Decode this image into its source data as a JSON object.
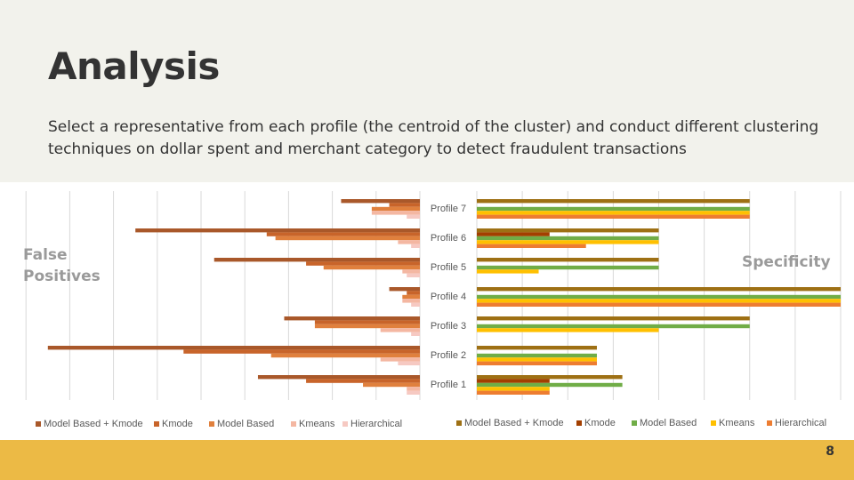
{
  "slide": {
    "title": "Analysis",
    "subtitle": "Select a representative from each profile (the centroid of the cluster) and conduct different clustering techniques on dollar spent and merchant category to detect fraudulent transactions",
    "page_number": "8"
  },
  "colors": {
    "header_bg": "#f2f2ec",
    "footer_bg": "#ecba45",
    "grid": "#d9d9d9",
    "fp_series": [
      "#a9582a",
      "#c8642a",
      "#e0803d",
      "#f4b7a2",
      "#f6c9c2"
    ],
    "spec_series": [
      "#9e7014",
      "#a33f00",
      "#70ad47",
      "#ffc000",
      "#ed7d31"
    ]
  },
  "chart_data": [
    {
      "type": "bar",
      "orientation": "horizontal-reversed",
      "title": "False Positives",
      "categories": [
        "Profile 1",
        "Profile 2",
        "Profile 3",
        "Profile 4",
        "Profile 5",
        "Profile 6",
        "Profile 7"
      ],
      "series": [
        {
          "name": "Model Based + Kmode",
          "values": [
            37,
            85,
            31,
            7,
            47,
            65,
            18
          ]
        },
        {
          "name": "Kmode",
          "values": [
            26,
            54,
            24,
            3,
            26,
            35,
            7
          ]
        },
        {
          "name": "Model Based",
          "values": [
            13,
            34,
            24,
            4,
            22,
            33,
            11
          ]
        },
        {
          "name": "Kmeans",
          "values": [
            3,
            9,
            9,
            4,
            4,
            5,
            11
          ]
        },
        {
          "name": "Hierarchical",
          "values": [
            3,
            5,
            2,
            2,
            3,
            2,
            3
          ]
        }
      ],
      "xlim": [
        0,
        90
      ],
      "grid": true,
      "legend": "bottom"
    },
    {
      "type": "bar",
      "orientation": "horizontal",
      "title": "Specificity",
      "categories": [
        "Profile 1",
        "Profile 2",
        "Profile 3",
        "Profile 4",
        "Profile 5",
        "Profile 6",
        "Profile 7"
      ],
      "series": [
        {
          "name": "Model Based + Kmode",
          "values": [
            0.4,
            0.33,
            0.75,
            1.0,
            0.5,
            0.5,
            0.75
          ]
        },
        {
          "name": "Kmode",
          "values": [
            0.2,
            0.0,
            0.0,
            0.0,
            0.0,
            0.2,
            0.0
          ]
        },
        {
          "name": "Model Based",
          "values": [
            0.4,
            0.33,
            0.75,
            1.0,
            0.5,
            0.5,
            0.75
          ]
        },
        {
          "name": "Kmeans",
          "values": [
            0.2,
            0.33,
            0.5,
            1.0,
            0.17,
            0.5,
            0.75
          ]
        },
        {
          "name": "Hierarchical",
          "values": [
            0.2,
            0.33,
            0.0,
            1.0,
            0.0,
            0.3,
            0.75
          ]
        }
      ],
      "xlim": [
        0,
        1
      ],
      "grid": true,
      "legend": "bottom"
    }
  ]
}
